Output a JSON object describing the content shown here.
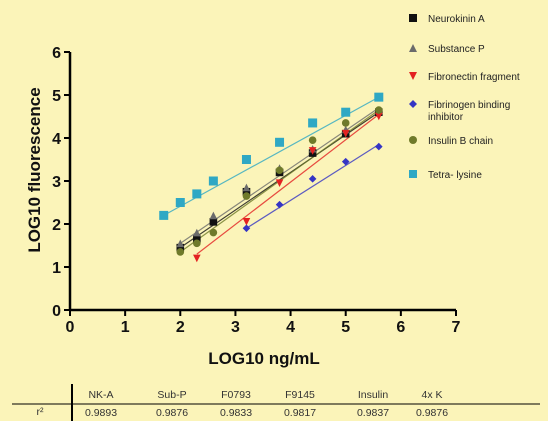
{
  "chart_data": {
    "type": "scatter",
    "xlabel": "LOG10 ng/mL",
    "ylabel": "LOG10 fluorescence",
    "xlim": [
      0,
      7
    ],
    "ylim": [
      0,
      6
    ],
    "xticks": [
      "0",
      "1",
      "2",
      "3",
      "4",
      "5",
      "6",
      "7"
    ],
    "yticks": [
      "0",
      "1",
      "2",
      "3",
      "4",
      "5",
      "6"
    ],
    "grid": false,
    "legend_placement": "top-right",
    "series": [
      {
        "name": "Neurokinin A",
        "marker": "square",
        "color": "#111111",
        "x": [
          2.0,
          2.3,
          2.6,
          3.2,
          3.8,
          4.4,
          5.0,
          5.6
        ],
        "y": [
          1.45,
          1.65,
          2.05,
          2.75,
          3.2,
          3.65,
          4.1,
          4.6
        ],
        "fit": [
          [
            2.0,
            1.45
          ],
          [
            5.6,
            4.6
          ]
        ]
      },
      {
        "name": "Substance P",
        "marker": "triangle-up",
        "color": "#6b6b6b",
        "x": [
          2.0,
          2.3,
          2.6,
          3.2,
          3.8,
          4.4,
          5.0,
          5.6
        ],
        "y": [
          1.55,
          1.8,
          2.2,
          2.85,
          3.3,
          3.75,
          4.2,
          4.65
        ],
        "fit": [
          [
            2.0,
            1.55
          ],
          [
            5.6,
            4.7
          ]
        ]
      },
      {
        "name": "Fibronectin fragment",
        "marker": "triangle-down",
        "color": "#e32222",
        "x": [
          2.3,
          3.2,
          3.8,
          4.4,
          5.0,
          5.6
        ],
        "y": [
          1.2,
          2.05,
          2.95,
          3.7,
          4.1,
          4.5
        ],
        "fit": [
          [
            2.3,
            1.3
          ],
          [
            5.6,
            4.55
          ]
        ]
      },
      {
        "name": "Fibrinogen binding inhibitor",
        "marker": "diamond",
        "color": "#3535c4",
        "x": [
          3.2,
          3.8,
          4.4,
          5.0,
          5.6
        ],
        "y": [
          1.9,
          2.45,
          3.05,
          3.45,
          3.8
        ],
        "fit": [
          [
            3.2,
            1.9
          ],
          [
            5.6,
            3.85
          ]
        ]
      },
      {
        "name": "Insulin B chain",
        "marker": "circle",
        "color": "#6f7a2a",
        "x": [
          2.0,
          2.3,
          2.6,
          3.2,
          3.8,
          4.4,
          5.0,
          5.6
        ],
        "y": [
          1.35,
          1.55,
          1.8,
          2.65,
          3.25,
          3.95,
          4.35,
          4.65
        ],
        "fit": [
          [
            2.0,
            1.35
          ],
          [
            5.6,
            4.65
          ]
        ]
      },
      {
        "name": "Tetra- lysine",
        "marker": "square",
        "color": "#2fa8c4",
        "x": [
          1.7,
          2.0,
          2.3,
          2.6,
          3.2,
          3.8,
          4.4,
          5.0,
          5.6
        ],
        "y": [
          2.2,
          2.5,
          2.7,
          3.0,
          3.5,
          3.9,
          4.35,
          4.6,
          4.95
        ],
        "fit": [
          [
            1.7,
            2.2
          ],
          [
            5.6,
            4.95
          ]
        ]
      }
    ],
    "table": {
      "row_label": "r²",
      "columns": [
        "NK-A",
        "Sub-P",
        "F0793",
        "F9145",
        "Insulin",
        "4x K"
      ],
      "values": [
        "0.9893",
        "0.9876",
        "0.9833",
        "0.9817",
        "0.9837",
        "0.9876"
      ]
    }
  }
}
